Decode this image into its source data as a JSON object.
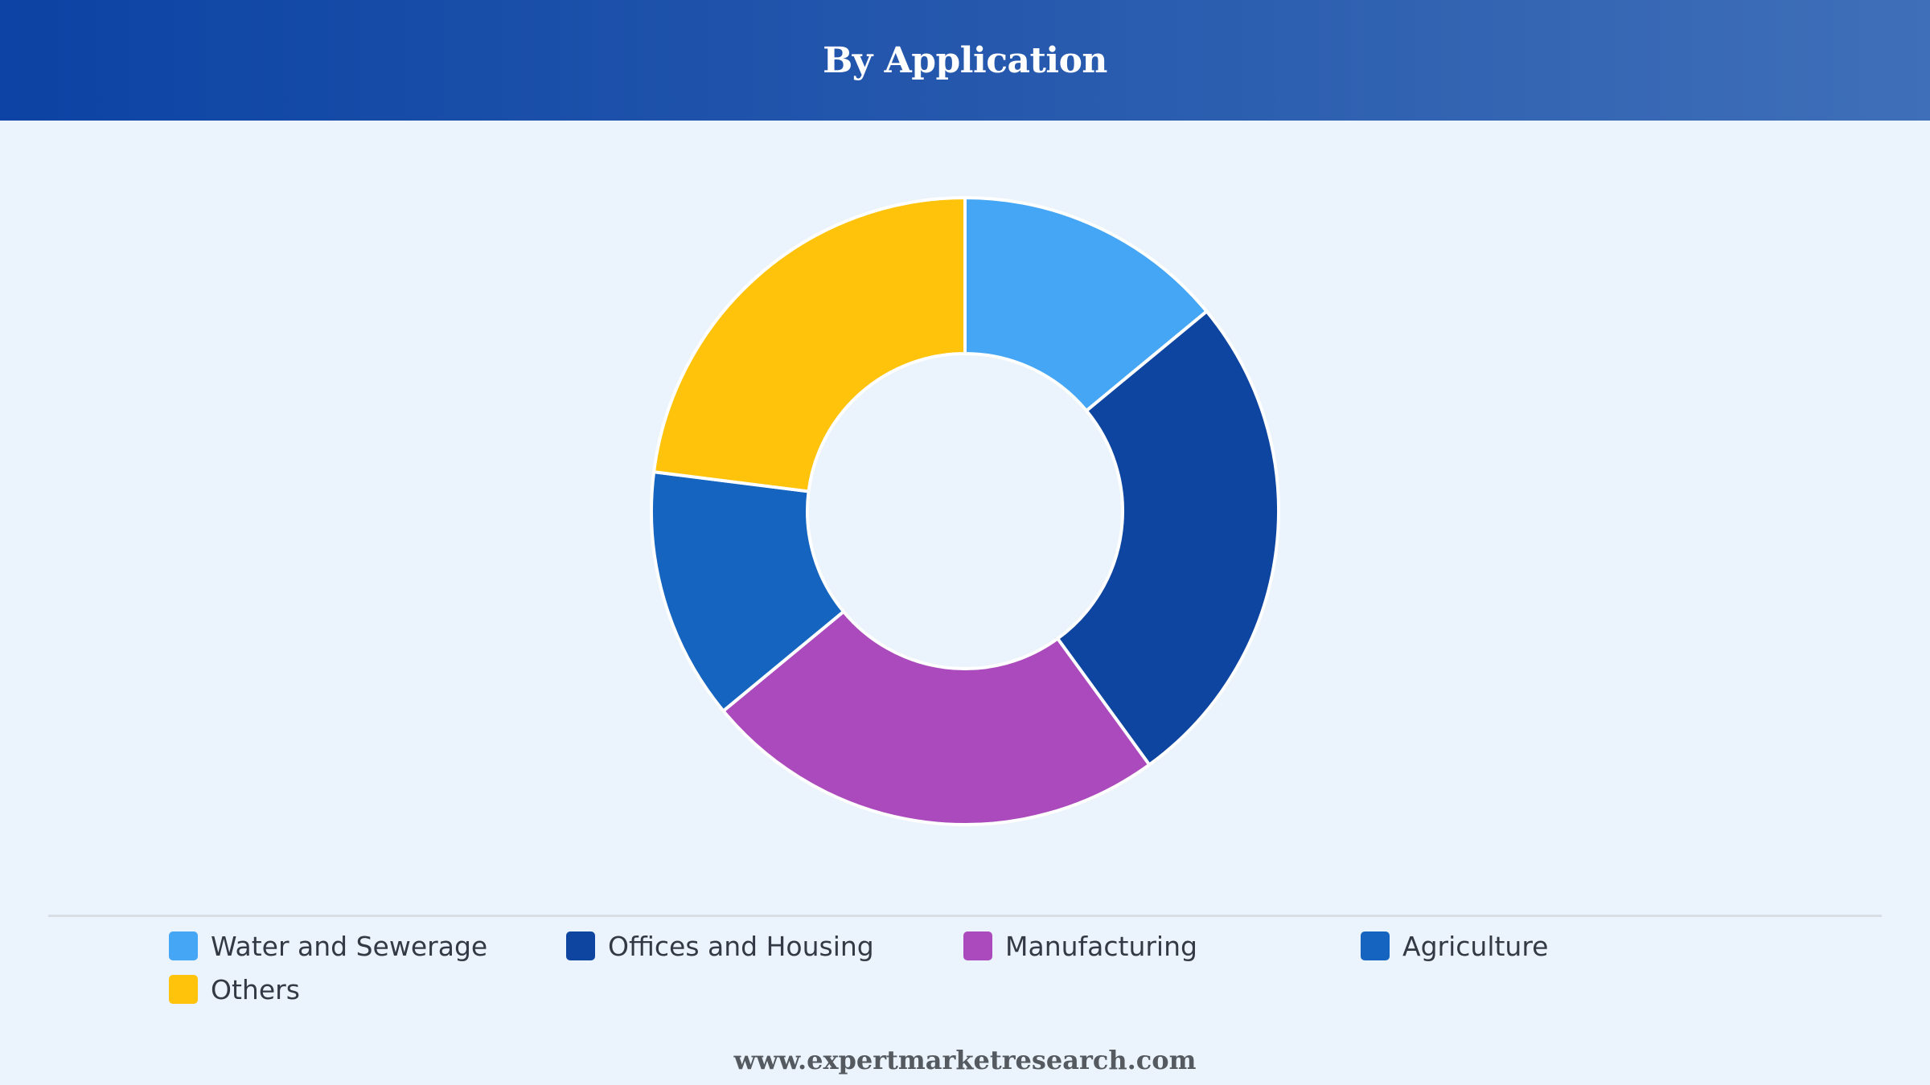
{
  "header": {
    "title": "By Application"
  },
  "chart_data": {
    "type": "pie",
    "donut": true,
    "categories": [
      "Water and Sewerage",
      "Offices and Housing",
      "Manufacturing",
      "Agriculture",
      "Others"
    ],
    "values": [
      14,
      26,
      24,
      13,
      23
    ],
    "colors": [
      "#44a6f5",
      "#0e45a0",
      "#ab4abc",
      "#1565c0",
      "#fec30a"
    ],
    "legend_position": "bottom"
  },
  "legend": {
    "items": [
      {
        "label": "Water and Sewerage",
        "color": "#44a6f5"
      },
      {
        "label": "Offices and Housing",
        "color": "#0e45a0"
      },
      {
        "label": "Manufacturing",
        "color": "#ab4abc"
      },
      {
        "label": "Agriculture",
        "color": "#1565c0"
      },
      {
        "label": "Others",
        "color": "#fec30a"
      }
    ]
  },
  "footer": {
    "text": "www.expertmarketresearch.com"
  }
}
